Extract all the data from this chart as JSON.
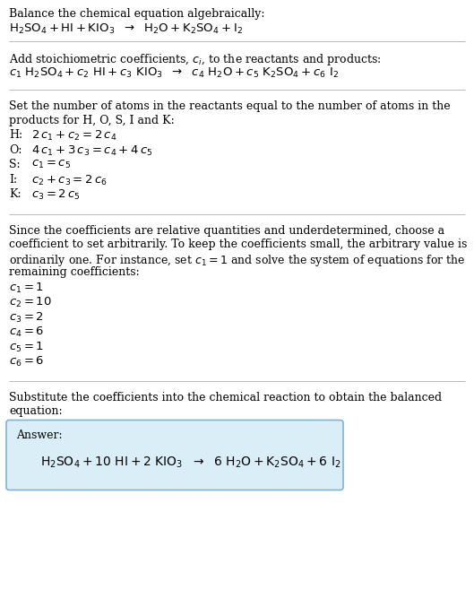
{
  "bg_color": "#ffffff",
  "text_color": "#000000",
  "section1_title": "Balance the chemical equation algebraically:",
  "section2_title": "Add stoichiometric coefficients, $c_i$, to the reactants and products:",
  "section3_title_l1": "Set the number of atoms in the reactants equal to the number of atoms in the",
  "section3_title_l2": "products for H, O, S, I and K:",
  "section4_title_l1": "Since the coefficients are relative quantities and underdetermined, choose a",
  "section4_title_l2": "coefficient to set arbitrarily. To keep the coefficients small, the arbitrary value is",
  "section4_title_l3": "ordinarily one. For instance, set $c_1 = 1$ and solve the system of equations for the",
  "section4_title_l4": "remaining coefficients:",
  "section5_title_l1": "Substitute the coefficients into the chemical reaction to obtain the balanced",
  "section5_title_l2": "equation:",
  "answer_label": "Answer:",
  "answer_box_color": "#daeef7",
  "answer_box_border": "#7fb3d3",
  "divider_color": "#bbbbbb",
  "fs_body": 9.0,
  "fs_eq": 9.5
}
